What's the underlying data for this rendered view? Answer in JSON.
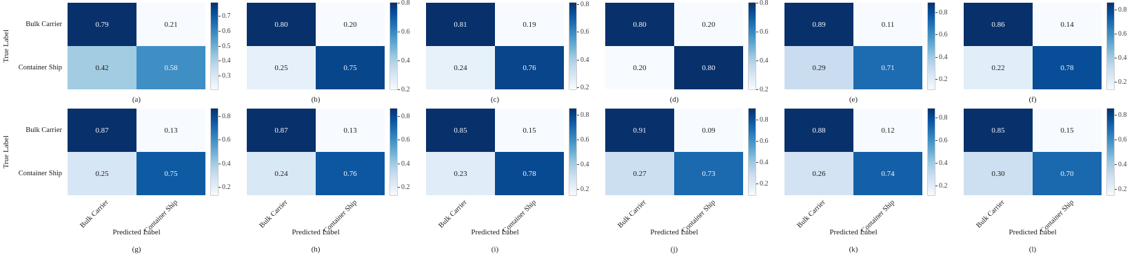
{
  "figure": {
    "ylabel": "True Label",
    "xlabel": "Predicted Label",
    "classes": [
      "Bulk Carrier",
      "Container Ship"
    ],
    "colormap": {
      "name": "Blues",
      "stops": [
        "#f7fbff",
        "#deebf7",
        "#c6dbef",
        "#9ecae1",
        "#6baed6",
        "#4292c6",
        "#2171b5",
        "#08519c",
        "#08306b"
      ]
    },
    "cell_text_light": "#f2f6fb",
    "cell_text_dark": "#1a1a1a",
    "tick_color": "#3c3c3c"
  },
  "chart_data": [
    {
      "type": "heatmap",
      "label": "(a)",
      "x_categories": [
        "Bulk Carrier",
        "Container Ship"
      ],
      "y_categories": [
        "Bulk Carrier",
        "Container Ship"
      ],
      "values": [
        [
          0.79,
          0.21
        ],
        [
          0.42,
          0.58
        ]
      ],
      "colorbar_ticks": [
        0.3,
        0.4,
        0.5,
        0.6,
        0.7
      ]
    },
    {
      "type": "heatmap",
      "label": "(b)",
      "x_categories": [
        "Bulk Carrier",
        "Container Ship"
      ],
      "y_categories": [
        "Bulk Carrier",
        "Container Ship"
      ],
      "values": [
        [
          0.8,
          0.2
        ],
        [
          0.25,
          0.75
        ]
      ],
      "colorbar_ticks": [
        0.2,
        0.4,
        0.6,
        0.8
      ]
    },
    {
      "type": "heatmap",
      "label": "(c)",
      "x_categories": [
        "Bulk Carrier",
        "Container Ship"
      ],
      "y_categories": [
        "Bulk Carrier",
        "Container Ship"
      ],
      "values": [
        [
          0.81,
          0.19
        ],
        [
          0.24,
          0.76
        ]
      ],
      "colorbar_ticks": [
        0.2,
        0.4,
        0.6,
        0.8
      ]
    },
    {
      "type": "heatmap",
      "label": "(d)",
      "x_categories": [
        "Bulk Carrier",
        "Container Ship"
      ],
      "y_categories": [
        "Bulk Carrier",
        "Container Ship"
      ],
      "values": [
        [
          0.8,
          0.2
        ],
        [
          0.2,
          0.8
        ]
      ],
      "colorbar_ticks": [
        0.2,
        0.4,
        0.6,
        0.8
      ]
    },
    {
      "type": "heatmap",
      "label": "(e)",
      "x_categories": [
        "Bulk Carrier",
        "Container Ship"
      ],
      "y_categories": [
        "Bulk Carrier",
        "Container Ship"
      ],
      "values": [
        [
          0.89,
          0.11
        ],
        [
          0.29,
          0.71
        ]
      ],
      "colorbar_ticks": [
        0.2,
        0.4,
        0.6,
        0.8
      ]
    },
    {
      "type": "heatmap",
      "label": "(f)",
      "x_categories": [
        "Bulk Carrier",
        "Container Ship"
      ],
      "y_categories": [
        "Bulk Carrier",
        "Container Ship"
      ],
      "values": [
        [
          0.86,
          0.14
        ],
        [
          0.22,
          0.78
        ]
      ],
      "colorbar_ticks": [
        0.2,
        0.4,
        0.6,
        0.8
      ]
    },
    {
      "type": "heatmap",
      "label": "(g)",
      "x_categories": [
        "Bulk Carrier",
        "Container Ship"
      ],
      "y_categories": [
        "Bulk Carrier",
        "Container Ship"
      ],
      "values": [
        [
          0.87,
          0.13
        ],
        [
          0.25,
          0.75
        ]
      ],
      "colorbar_ticks": [
        0.2,
        0.4,
        0.6,
        0.8
      ]
    },
    {
      "type": "heatmap",
      "label": "(h)",
      "x_categories": [
        "Bulk Carrier",
        "Container Ship"
      ],
      "y_categories": [
        "Bulk Carrier",
        "Container Ship"
      ],
      "values": [
        [
          0.87,
          0.13
        ],
        [
          0.24,
          0.76
        ]
      ],
      "colorbar_ticks": [
        0.2,
        0.4,
        0.6,
        0.8
      ]
    },
    {
      "type": "heatmap",
      "label": "(i)",
      "x_categories": [
        "Bulk Carrier",
        "Container Ship"
      ],
      "y_categories": [
        "Bulk Carrier",
        "Container Ship"
      ],
      "values": [
        [
          0.85,
          0.15
        ],
        [
          0.23,
          0.78
        ]
      ],
      "colorbar_ticks": [
        0.2,
        0.4,
        0.6,
        0.8
      ]
    },
    {
      "type": "heatmap",
      "label": "(j)",
      "x_categories": [
        "Bulk Carrier",
        "Container Ship"
      ],
      "y_categories": [
        "Bulk Carrier",
        "Container Ship"
      ],
      "values": [
        [
          0.91,
          0.09
        ],
        [
          0.27,
          0.73
        ]
      ],
      "colorbar_ticks": [
        0.2,
        0.4,
        0.6,
        0.8
      ]
    },
    {
      "type": "heatmap",
      "label": "(k)",
      "x_categories": [
        "Bulk Carrier",
        "Container Ship"
      ],
      "y_categories": [
        "Bulk Carrier",
        "Container Ship"
      ],
      "values": [
        [
          0.88,
          0.12
        ],
        [
          0.26,
          0.74
        ]
      ],
      "colorbar_ticks": [
        0.2,
        0.4,
        0.6,
        0.8
      ]
    },
    {
      "type": "heatmap",
      "label": "(l)",
      "x_categories": [
        "Bulk Carrier",
        "Container Ship"
      ],
      "y_categories": [
        "Bulk Carrier",
        "Container Ship"
      ],
      "values": [
        [
          0.85,
          0.15
        ],
        [
          0.3,
          0.7
        ]
      ],
      "colorbar_ticks": [
        0.2,
        0.4,
        0.6,
        0.8
      ]
    }
  ]
}
